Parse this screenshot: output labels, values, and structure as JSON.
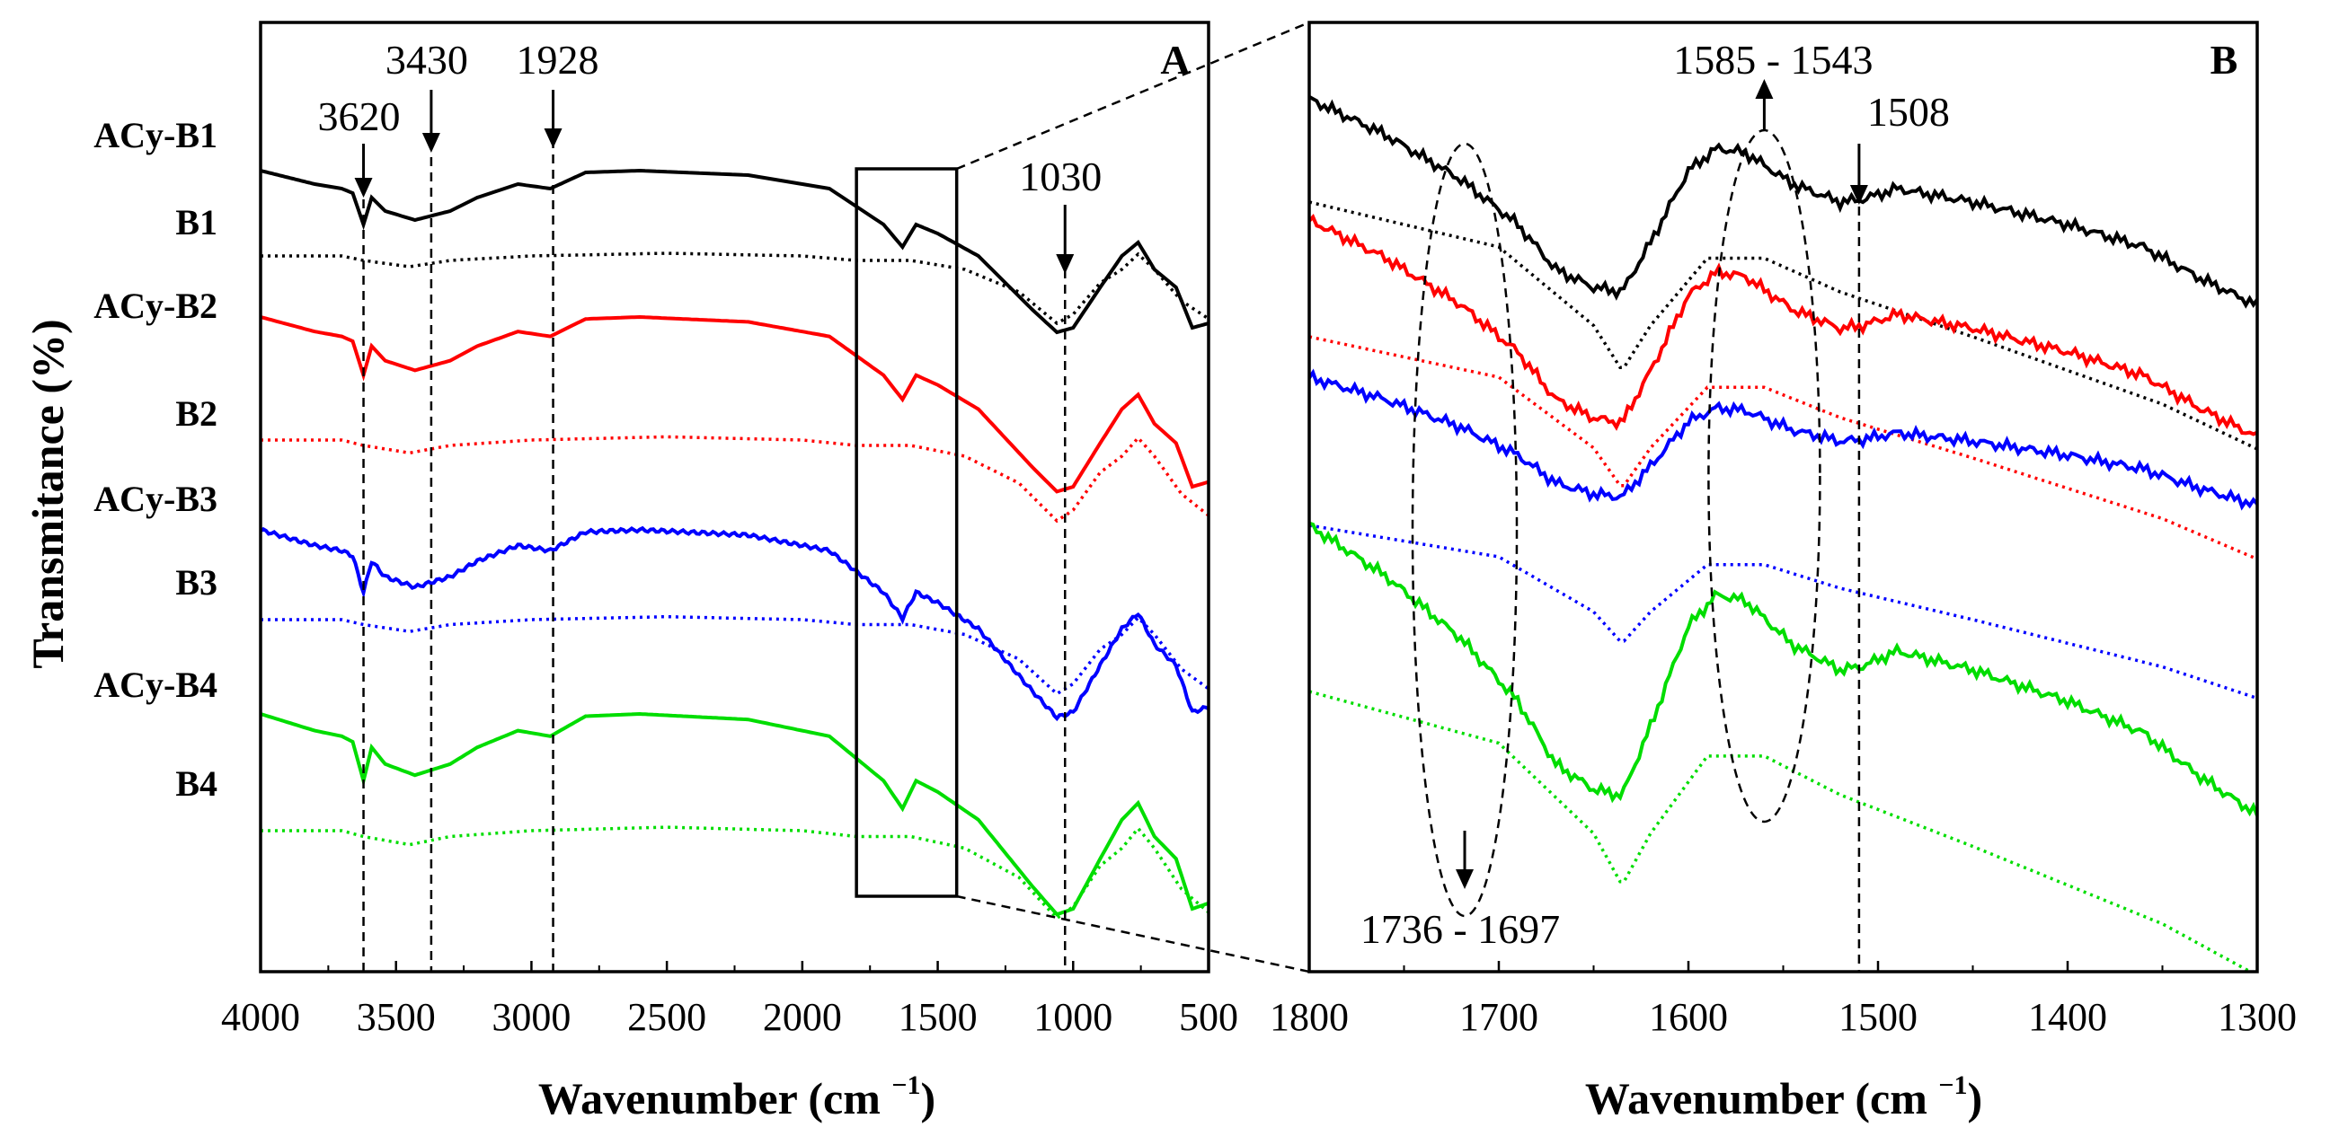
{
  "chart_data": [
    {
      "panel": "A",
      "type": "line",
      "title": "",
      "xlabel": "Wavenumber (cm",
      "xlabel_sup": "−1",
      "xlabel_close": ")",
      "ylabel": "Transmitance (%)",
      "xlim": [
        4000,
        500
      ],
      "xticks": [
        "4000",
        "3500",
        "3000",
        "2500",
        "2000",
        "1500",
        "1000",
        "500"
      ],
      "series_labels": [
        "ACy-B1",
        "B1",
        "ACy-B2",
        "B2",
        "ACy-B3",
        "B3",
        "ACy-B4",
        "B4"
      ],
      "series_colors": [
        "#000000",
        "#000000",
        "#ff0000",
        "#ff0000",
        "#0000ff",
        "#0000ff",
        "#00dd00",
        "#00dd00"
      ],
      "annotations": [
        {
          "text": "3620",
          "x": 3620
        },
        {
          "text": "3430",
          "x": 3370
        },
        {
          "text": "1928",
          "x": 2920
        },
        {
          "text": "1030",
          "x": 1030
        }
      ],
      "zoom_box": {
        "x_from": 1800,
        "x_to": 1430
      }
    },
    {
      "panel": "B",
      "type": "line",
      "title": "",
      "xlabel": "Wavenumber (cm",
      "xlabel_sup": "−1",
      "xlabel_close": ")",
      "xlim": [
        1800,
        1300
      ],
      "xticks": [
        "1800",
        "1700",
        "1600",
        "1500",
        "1400",
        "1300"
      ],
      "annotations": [
        {
          "text": "1585 - 1543",
          "x": 1560
        },
        {
          "text": "1508",
          "x": 1510
        },
        {
          "text": "1736 - 1697",
          "x": 1718
        }
      ]
    }
  ]
}
